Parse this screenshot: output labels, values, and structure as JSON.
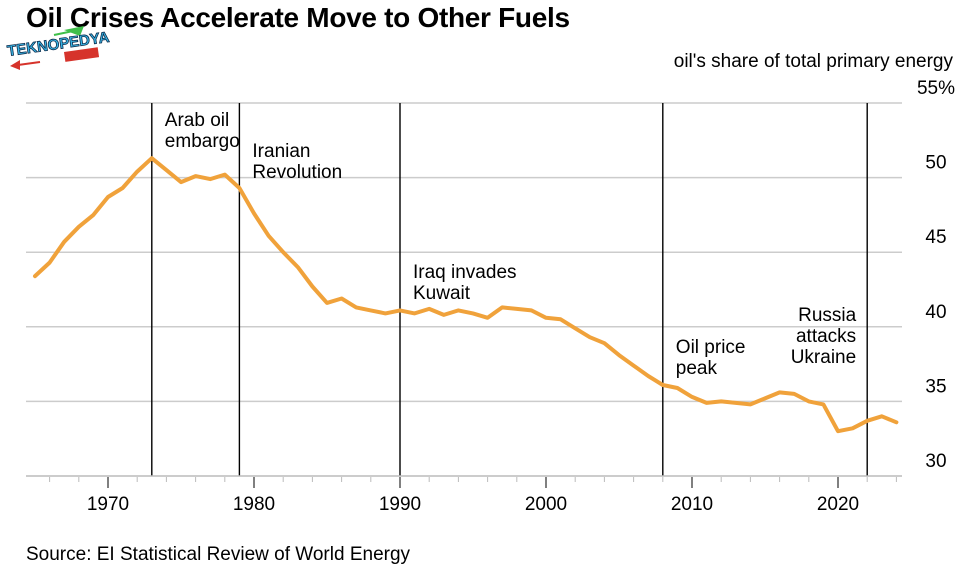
{
  "header": {
    "title": "Oil Crises Accelerate Move to Other Fuels",
    "watermark": "TEKNOPEDYA"
  },
  "footer": {
    "source": "Source: EI Statistical Review of World Energy"
  },
  "chart_data": {
    "type": "line",
    "title": "Oil Crises Accelerate Move to Other Fuels",
    "xlabel": "",
    "ylabel": "oil's share of total primary energy",
    "xlim": [
      1964.5,
      2026.5
    ],
    "ylim": [
      30,
      55
    ],
    "x_ticks": [
      1970,
      1980,
      1990,
      2000,
      2010,
      2020
    ],
    "x_tick_labels": [
      "1970",
      "1980",
      "1990",
      "2000",
      "2010",
      "2020"
    ],
    "y_ticks": [
      30,
      35,
      40,
      45,
      50,
      55
    ],
    "y_tick_labels": [
      "30",
      "35",
      "40",
      "45",
      "50",
      "55%"
    ],
    "grid": "horizontal",
    "line_color": "#f0a23b",
    "series": [
      {
        "name": "Oil share of total primary energy (%)",
        "x": [
          1965,
          1966,
          1967,
          1968,
          1969,
          1970,
          1971,
          1972,
          1973,
          1974,
          1975,
          1976,
          1977,
          1978,
          1979,
          1980,
          1981,
          1982,
          1983,
          1984,
          1985,
          1986,
          1987,
          1988,
          1989,
          1990,
          1991,
          1992,
          1993,
          1994,
          1995,
          1996,
          1997,
          1998,
          1999,
          2000,
          2001,
          2002,
          2003,
          2004,
          2005,
          2006,
          2007,
          2008,
          2009,
          2010,
          2011,
          2012,
          2013,
          2014,
          2015,
          2016,
          2017,
          2018,
          2019,
          2020,
          2021,
          2022,
          2023,
          2024
        ],
        "values": [
          43.4,
          44.3,
          45.7,
          46.7,
          47.5,
          48.7,
          49.3,
          50.4,
          51.3,
          50.5,
          49.7,
          50.1,
          49.9,
          50.2,
          49.3,
          47.6,
          46.1,
          45.0,
          44.0,
          42.7,
          41.6,
          41.9,
          41.3,
          41.1,
          40.9,
          41.1,
          40.9,
          41.2,
          40.8,
          41.1,
          40.9,
          40.6,
          41.3,
          41.2,
          41.1,
          40.6,
          40.5,
          39.9,
          39.3,
          38.9,
          38.1,
          37.4,
          36.7,
          36.1,
          35.9,
          35.3,
          34.9,
          35.0,
          34.9,
          34.8,
          35.2,
          35.6,
          35.5,
          35.0,
          34.8,
          33.0,
          33.2,
          33.7,
          34.0,
          33.6
        ]
      }
    ],
    "annotations": [
      {
        "year": 1973,
        "lines": [
          "Arab oil",
          "embargo"
        ],
        "side": "right",
        "row": 0
      },
      {
        "year": 1979,
        "lines": [
          "Iranian",
          "Revolution"
        ],
        "side": "right",
        "row": 1
      },
      {
        "year": 1990,
        "lines": [
          "Iraq invades",
          "Kuwait"
        ],
        "side": "right",
        "row": 2
      },
      {
        "year": 2008,
        "lines": [
          "Oil price",
          "peak"
        ],
        "side": "right",
        "row": 3
      },
      {
        "year": 2022,
        "lines": [
          "Russia",
          "attacks",
          "Ukraine"
        ],
        "side": "left",
        "row": 4
      }
    ]
  }
}
